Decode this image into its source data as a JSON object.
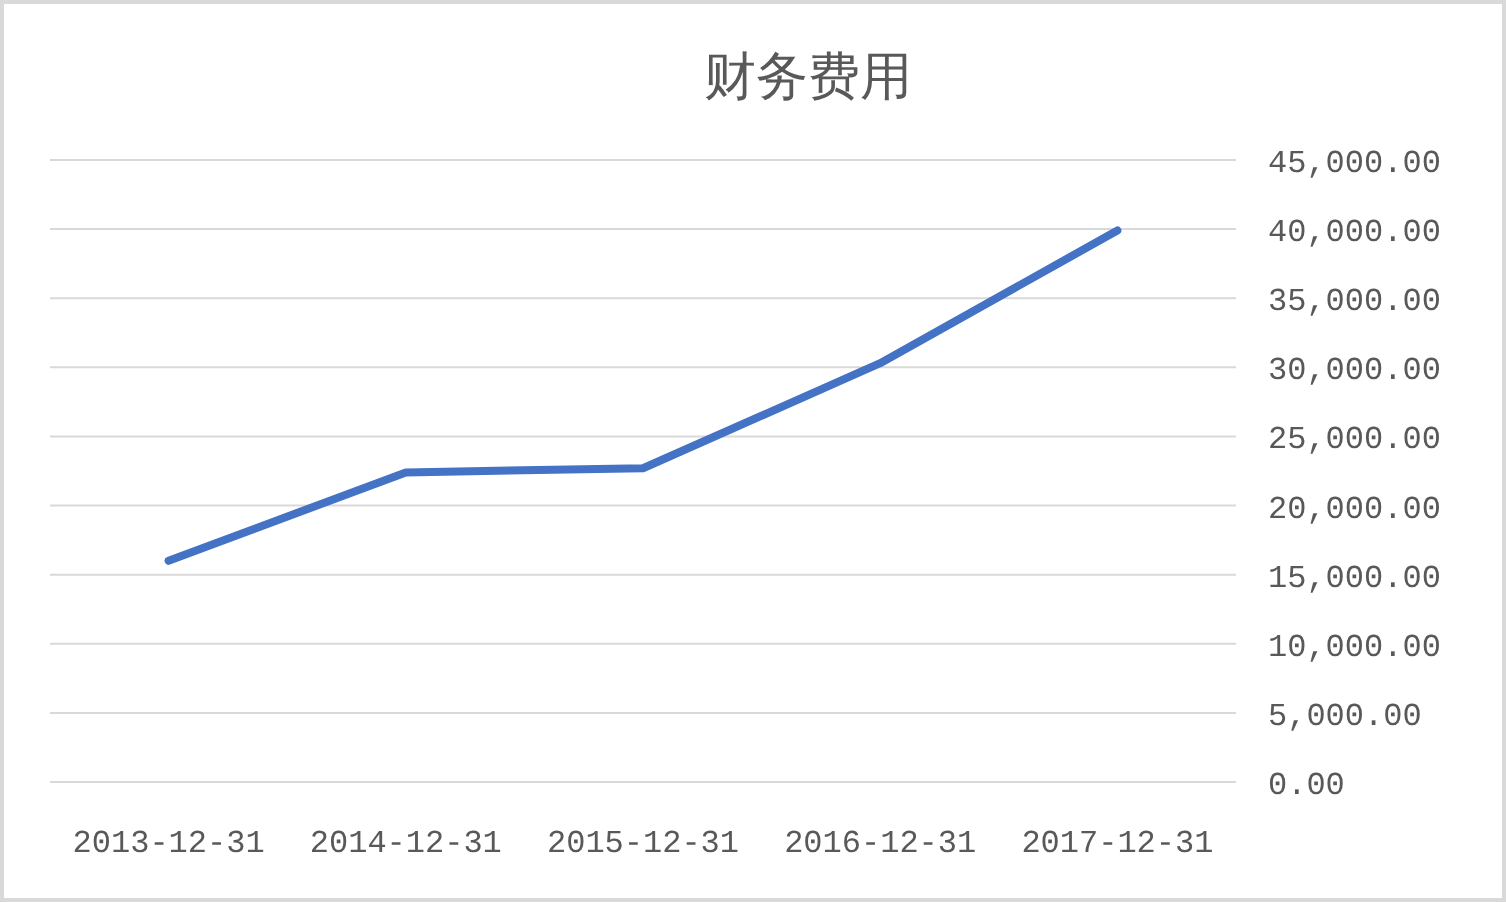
{
  "chart_data": {
    "type": "line",
    "title": "财务费用",
    "categories": [
      "2013-12-31",
      "2014-12-31",
      "2015-12-31",
      "2016-12-31",
      "2017-12-31"
    ],
    "series": [
      {
        "color": "#4472c4",
        "values": [
          16000,
          22400,
          22700,
          30300,
          39900
        ]
      }
    ],
    "ylim": [
      0,
      45000
    ],
    "yticks": [
      {
        "value": 0,
        "label": "0.00"
      },
      {
        "value": 5000,
        "label": "5,000.00"
      },
      {
        "value": 10000,
        "label": "10,000.00"
      },
      {
        "value": 15000,
        "label": "15,000.00"
      },
      {
        "value": 20000,
        "label": "20,000.00"
      },
      {
        "value": 25000,
        "label": "25,000.00"
      },
      {
        "value": 30000,
        "label": "30,000.00"
      },
      {
        "value": 35000,
        "label": "35,000.00"
      },
      {
        "value": 40000,
        "label": "40,000.00"
      },
      {
        "value": 45000,
        "label": "45,000.00"
      }
    ],
    "grid": "y",
    "line_style": "solid"
  }
}
